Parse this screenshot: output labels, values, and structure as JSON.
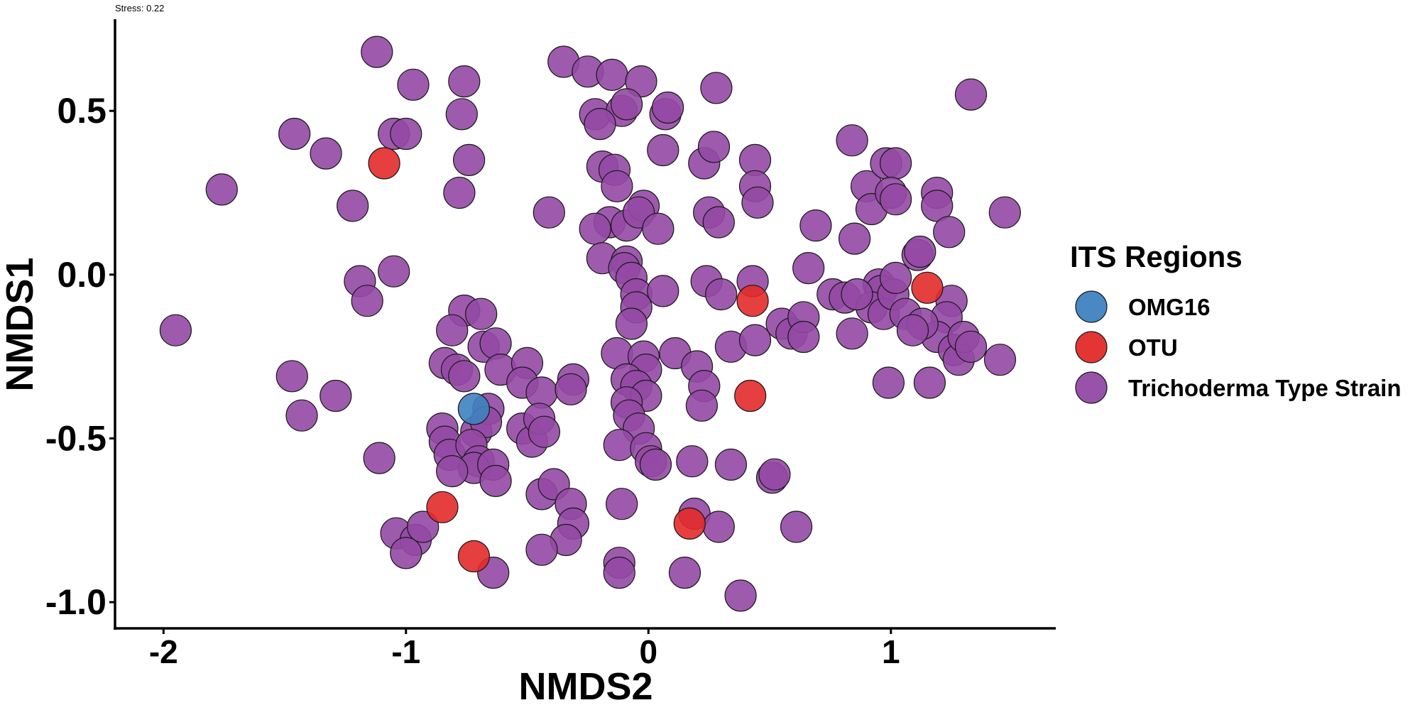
{
  "chart_data": {
    "type": "scatter",
    "subtitle": "Stress: 0.22",
    "xlabel": "NMDS2",
    "ylabel": "NMDS1",
    "xlim": [
      -2.2,
      1.68
    ],
    "ylim": [
      -1.08,
      0.78
    ],
    "x_ticks": [
      -2,
      -1,
      0,
      1
    ],
    "y_ticks": [
      0.5,
      0.0,
      -0.5,
      -1.0
    ],
    "x_tick_labels": [
      "-2",
      "-1",
      "0",
      "1"
    ],
    "y_tick_labels": [
      "0.5",
      "0.0",
      "-0.5",
      "-1.0"
    ],
    "grid": false,
    "legend_title": "ITS Regions",
    "legend_position": "right",
    "series": [
      {
        "name": "OMG16",
        "color": "#3E82C0",
        "points": [
          [
            -0.72,
            -0.41
          ]
        ]
      },
      {
        "name": "OTU",
        "color": "#E32A2A",
        "points": [
          [
            -1.09,
            0.34
          ],
          [
            0.43,
            -0.08
          ],
          [
            1.15,
            -0.04
          ],
          [
            0.42,
            -0.37
          ],
          [
            -0.85,
            -0.71
          ],
          [
            -0.72,
            -0.86
          ],
          [
            0.17,
            -0.76
          ]
        ]
      },
      {
        "name": "Trichoderma Type Strain",
        "color": "#9349A4",
        "points": [
          [
            -1.12,
            0.68
          ],
          [
            -0.97,
            0.58
          ],
          [
            -0.76,
            0.59
          ],
          [
            -0.77,
            0.49
          ],
          [
            -1.46,
            0.43
          ],
          [
            -1.33,
            0.37
          ],
          [
            -1.05,
            0.43
          ],
          [
            -1.0,
            0.43
          ],
          [
            -0.74,
            0.35
          ],
          [
            -1.76,
            0.26
          ],
          [
            -0.78,
            0.25
          ],
          [
            -1.22,
            0.21
          ],
          [
            -1.19,
            -0.02
          ],
          [
            -1.05,
            0.01
          ],
          [
            -1.16,
            -0.08
          ],
          [
            -1.95,
            -0.17
          ],
          [
            -1.47,
            -0.31
          ],
          [
            -1.43,
            -0.43
          ],
          [
            -1.29,
            -0.37
          ],
          [
            -1.11,
            -0.56
          ],
          [
            -1.04,
            -0.79
          ],
          [
            -0.96,
            -0.81
          ],
          [
            -1.0,
            -0.85
          ],
          [
            -0.93,
            -0.77
          ],
          [
            -0.76,
            -0.11
          ],
          [
            -0.81,
            -0.17
          ],
          [
            -0.69,
            -0.12
          ],
          [
            -0.68,
            -0.22
          ],
          [
            -0.63,
            -0.21
          ],
          [
            -0.84,
            -0.27
          ],
          [
            -0.79,
            -0.29
          ],
          [
            -0.76,
            -0.31
          ],
          [
            -0.61,
            -0.29
          ],
          [
            -0.5,
            -0.27
          ],
          [
            -0.52,
            -0.33
          ],
          [
            -0.44,
            -0.36
          ],
          [
            -0.85,
            -0.47
          ],
          [
            -0.84,
            -0.51
          ],
          [
            -0.82,
            -0.55
          ],
          [
            -0.71,
            -0.48
          ],
          [
            -0.66,
            -0.41
          ],
          [
            -0.67,
            -0.45
          ],
          [
            -0.73,
            -0.52
          ],
          [
            -0.7,
            -0.57
          ],
          [
            -0.72,
            -0.59
          ],
          [
            -0.64,
            -0.58
          ],
          [
            -0.63,
            -0.63
          ],
          [
            -0.81,
            -0.6
          ],
          [
            -0.52,
            -0.47
          ],
          [
            -0.48,
            -0.51
          ],
          [
            -0.45,
            -0.44
          ],
          [
            -0.43,
            -0.48
          ],
          [
            -0.44,
            -0.67
          ],
          [
            -0.39,
            -0.64
          ],
          [
            -0.32,
            -0.7
          ],
          [
            -0.31,
            -0.76
          ],
          [
            -0.34,
            -0.81
          ],
          [
            -0.44,
            -0.84
          ],
          [
            -0.64,
            -0.91
          ],
          [
            -0.35,
            0.65
          ],
          [
            -0.25,
            0.62
          ],
          [
            -0.15,
            0.61
          ],
          [
            -0.03,
            0.59
          ],
          [
            -0.22,
            0.49
          ],
          [
            -0.11,
            0.5
          ],
          [
            -0.09,
            0.52
          ],
          [
            -0.2,
            0.46
          ],
          [
            -0.41,
            0.19
          ],
          [
            -0.19,
            0.33
          ],
          [
            -0.14,
            0.32
          ],
          [
            -0.13,
            0.27
          ],
          [
            -0.16,
            0.16
          ],
          [
            -0.09,
            0.15
          ],
          [
            -0.22,
            0.14
          ],
          [
            -0.02,
            0.21
          ],
          [
            -0.04,
            0.19
          ],
          [
            0.04,
            0.14
          ],
          [
            -0.19,
            0.05
          ],
          [
            -0.09,
            0.04
          ],
          [
            -0.1,
            0.02
          ],
          [
            -0.07,
            -0.01
          ],
          [
            -0.05,
            -0.06
          ],
          [
            -0.05,
            -0.1
          ],
          [
            -0.07,
            -0.15
          ],
          [
            -0.13,
            -0.24
          ],
          [
            -0.02,
            -0.25
          ],
          [
            -0.01,
            -0.29
          ],
          [
            -0.09,
            -0.32
          ],
          [
            -0.05,
            -0.34
          ],
          [
            -0.01,
            -0.37
          ],
          [
            -0.09,
            -0.39
          ],
          [
            -0.08,
            -0.43
          ],
          [
            -0.04,
            -0.47
          ],
          [
            -0.31,
            -0.32
          ],
          [
            -0.32,
            -0.35
          ],
          [
            -0.12,
            -0.52
          ],
          [
            -0.01,
            -0.53
          ],
          [
            0.01,
            -0.57
          ],
          [
            0.03,
            -0.58
          ],
          [
            -0.11,
            -0.7
          ],
          [
            -0.12,
            -0.88
          ],
          [
            -0.12,
            -0.91
          ],
          [
            0.06,
            -0.05
          ],
          [
            0.11,
            -0.24
          ],
          [
            0.2,
            -0.28
          ],
          [
            0.07,
            0.49
          ],
          [
            0.08,
            0.51
          ],
          [
            0.28,
            0.57
          ],
          [
            0.06,
            0.38
          ],
          [
            0.23,
            0.34
          ],
          [
            0.27,
            0.39
          ],
          [
            0.44,
            0.35
          ],
          [
            0.44,
            0.27
          ],
          [
            0.45,
            0.22
          ],
          [
            0.25,
            0.19
          ],
          [
            0.29,
            0.16
          ],
          [
            0.24,
            -0.02
          ],
          [
            0.3,
            -0.06
          ],
          [
            0.43,
            -0.02
          ],
          [
            0.34,
            -0.22
          ],
          [
            0.44,
            -0.2
          ],
          [
            0.23,
            -0.34
          ],
          [
            0.22,
            -0.4
          ],
          [
            0.55,
            -0.15
          ],
          [
            0.59,
            -0.18
          ],
          [
            0.64,
            -0.13
          ],
          [
            0.64,
            -0.19
          ],
          [
            0.18,
            -0.57
          ],
          [
            0.34,
            -0.58
          ],
          [
            0.51,
            -0.62
          ],
          [
            0.52,
            -0.61
          ],
          [
            0.15,
            -0.91
          ],
          [
            0.19,
            -0.73
          ],
          [
            0.29,
            -0.77
          ],
          [
            0.38,
            -0.98
          ],
          [
            0.61,
            -0.77
          ],
          [
            0.66,
            0.02
          ],
          [
            0.69,
            0.15
          ],
          [
            0.76,
            -0.06
          ],
          [
            0.81,
            -0.07
          ],
          [
            0.84,
            0.41
          ],
          [
            0.85,
            0.11
          ],
          [
            0.9,
            0.27
          ],
          [
            0.92,
            0.2
          ],
          [
            0.95,
            -0.03
          ],
          [
            0.96,
            -0.05
          ],
          [
            0.92,
            -0.1
          ],
          [
            0.97,
            -0.12
          ],
          [
            1.01,
            -0.06
          ],
          [
            1.02,
            -0.01
          ],
          [
            0.84,
            -0.18
          ],
          [
            0.98,
            0.34
          ],
          [
            1.02,
            0.34
          ],
          [
            1.0,
            0.25
          ],
          [
            1.02,
            0.23
          ],
          [
            1.06,
            -0.12
          ],
          [
            1.11,
            0.06
          ],
          [
            1.12,
            0.07
          ],
          [
            1.19,
            0.25
          ],
          [
            1.19,
            0.21
          ],
          [
            1.24,
            0.13
          ],
          [
            1.25,
            -0.08
          ],
          [
            1.23,
            -0.13
          ],
          [
            1.19,
            -0.19
          ],
          [
            1.26,
            -0.23
          ],
          [
            1.28,
            -0.26
          ],
          [
            1.3,
            -0.19
          ],
          [
            1.33,
            -0.22
          ],
          [
            1.33,
            0.55
          ],
          [
            1.47,
            0.19
          ],
          [
            1.45,
            -0.26
          ],
          [
            1.13,
            -0.15
          ],
          [
            1.09,
            -0.17
          ],
          [
            0.99,
            -0.33
          ],
          [
            1.16,
            -0.33
          ],
          [
            0.86,
            -0.06
          ]
        ]
      }
    ]
  }
}
